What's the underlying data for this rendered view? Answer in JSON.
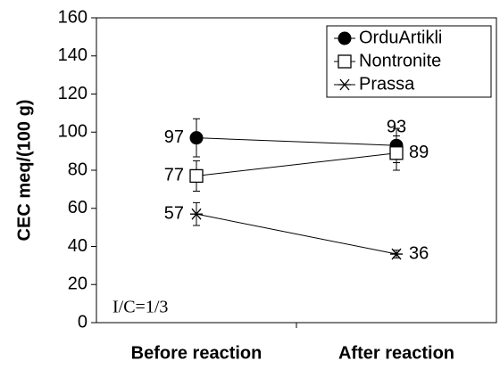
{
  "chart_data": {
    "type": "line",
    "y_label": "CEC meq/(100 g)",
    "categories": [
      "Before reaction",
      "After reaction"
    ],
    "series": [
      {
        "name": "OrduArtikli",
        "marker": "circle",
        "color": "#000000",
        "values": [
          97,
          93
        ],
        "errors": [
          10,
          9
        ]
      },
      {
        "name": "Nontronite",
        "marker": "square",
        "color": "#000000",
        "values": [
          77,
          89
        ],
        "errors": [
          8,
          9
        ]
      },
      {
        "name": "Prassa",
        "marker": "asterisk",
        "color": "#000000",
        "values": [
          57,
          36
        ],
        "errors": [
          6,
          2
        ]
      }
    ],
    "ylim": [
      0,
      160
    ],
    "yticks": [
      0,
      20,
      40,
      60,
      80,
      100,
      120,
      140,
      160
    ],
    "grid": false,
    "legend": "upper right",
    "annotation": "I/C=1/3"
  }
}
